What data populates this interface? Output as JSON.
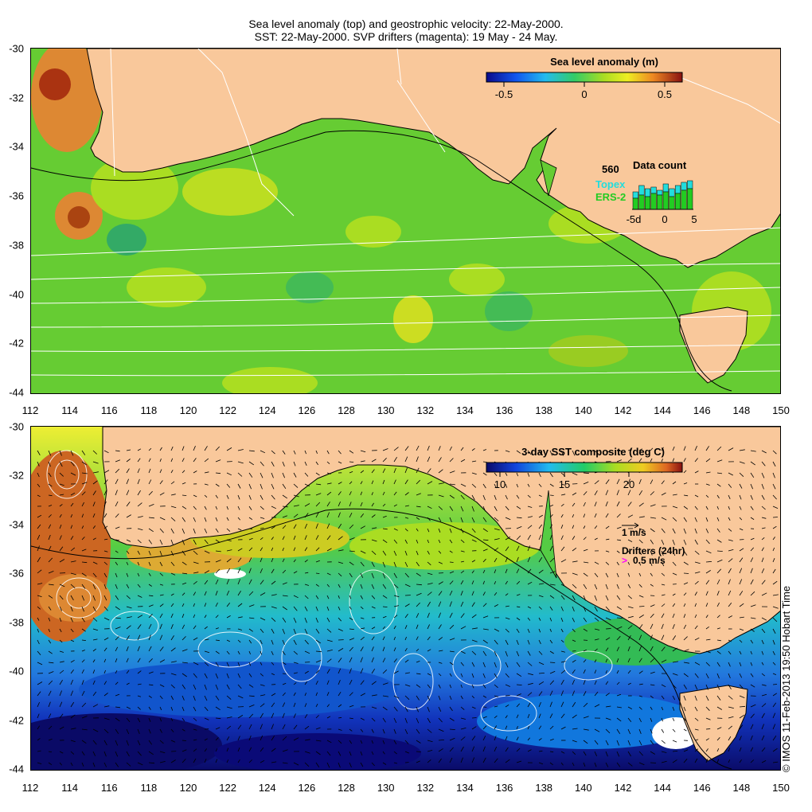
{
  "header": {
    "line1": "Sea level anomaly (top) and geostrophic velocity: 22-May-2000.",
    "line2": "SST: 22-May-2000. SVP drifters (magenta): 19 May - 24 May."
  },
  "axes": {
    "y_labels": [
      "-30",
      "-32",
      "-34",
      "-36",
      "-38",
      "-40",
      "-42",
      "-44"
    ],
    "x_labels": [
      "112",
      "114",
      "116",
      "118",
      "120",
      "122",
      "124",
      "126",
      "128",
      "130",
      "132",
      "134",
      "136",
      "138",
      "140",
      "142",
      "144",
      "146",
      "148",
      "150"
    ]
  },
  "top_panel": {
    "colorbar_title": "Sea level anomaly (m)",
    "colorbar_ticks": [
      "-0.5",
      "0",
      "0.5"
    ],
    "data_count": {
      "title": "Data count",
      "max_label": "560",
      "series": [
        "Topex",
        "ERS-2"
      ],
      "x_ticks": [
        "-5d",
        "0",
        "5"
      ]
    }
  },
  "bottom_panel": {
    "colorbar_title": "3-day SST composite (deg C)",
    "colorbar_ticks": [
      "10",
      "15",
      "20"
    ],
    "vector_scale_label": "1 m/s",
    "drifters_label": "Drifters (24hr)",
    "drifter_scale_label": "0.5 m/s"
  },
  "footer": {
    "copyright": "© IMOS 11-Feb-2013 19:50 Hobart Time"
  },
  "colors": {
    "land": "#f9c89b",
    "sla_mid": "#66cc33",
    "sst_warm": "#cc6622",
    "sst_cool": "#1144bb",
    "topex": "#22dddd",
    "ers2": "#22cc22",
    "drifter": "#ff00ff"
  }
}
